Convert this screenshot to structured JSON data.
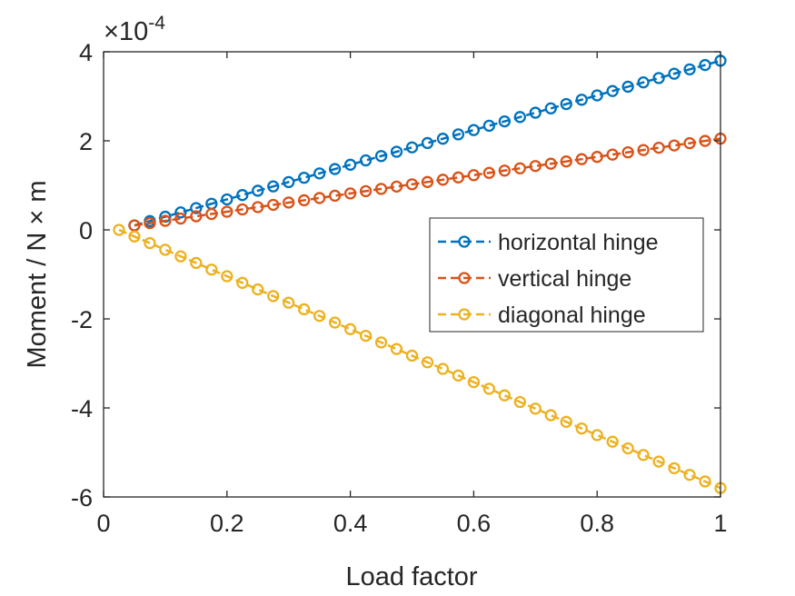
{
  "chart_data": {
    "type": "line",
    "title": "",
    "xlabel": "Load factor",
    "ylabel": "Moment / N × m",
    "y_scale_exponent_label": "×10",
    "y_scale_exponent": "-4",
    "xlim": [
      0,
      1
    ],
    "ylim": [
      -6,
      4
    ],
    "xticks": [
      0,
      0.2,
      0.4,
      0.6,
      0.8,
      1
    ],
    "xtick_labels": [
      "0",
      "0.2",
      "0.4",
      "0.6",
      "0.8",
      "1"
    ],
    "yticks": [
      -6,
      -4,
      -2,
      0,
      2,
      4
    ],
    "ytick_labels": [
      "-6",
      "-4",
      "-2",
      "0",
      "2",
      "4"
    ],
    "grid": false,
    "legend_position": "right-middle",
    "series": [
      {
        "name": "horizontal hinge",
        "color": "#0072BD",
        "line_style": "dashed",
        "marker": "circle",
        "x_start": 0.05,
        "x_end": 1.0,
        "points": 39,
        "y_start": 0.1,
        "y_end": 3.8
      },
      {
        "name": "vertical hinge",
        "color": "#D95319",
        "line_style": "dashed",
        "marker": "circle",
        "x_start": 0.05,
        "x_end": 1.0,
        "points": 39,
        "y_start": 0.1,
        "y_end": 2.05
      },
      {
        "name": "diagonal hinge",
        "color": "#EDB120",
        "line_style": "dashed",
        "marker": "circle",
        "x_start": 0.025,
        "x_end": 1.0,
        "points": 40,
        "y_start": 0.0,
        "y_end": -5.8
      }
    ]
  }
}
